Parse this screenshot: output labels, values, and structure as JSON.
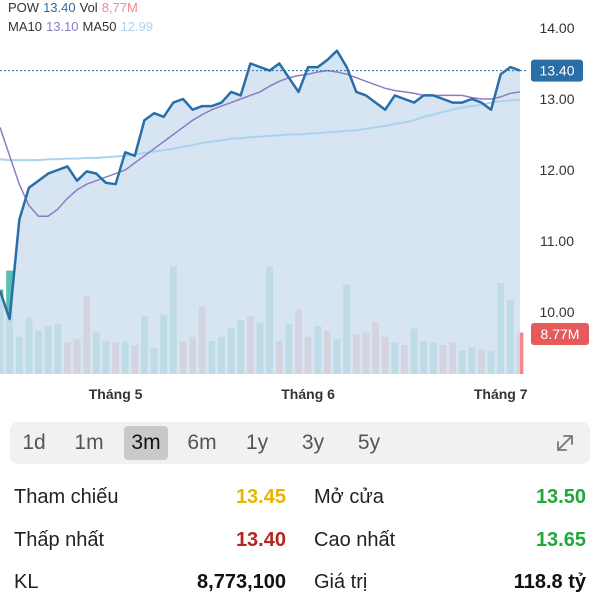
{
  "legend": {
    "ticker": "POW",
    "price": "13.40",
    "vol_label": "Vol",
    "vol_value": "8,77M",
    "ma10_label": "MA10",
    "ma10_value": "13.10",
    "ma50_label": "MA50",
    "ma50_value": "12.99"
  },
  "colors": {
    "price_line": "#2a6ea8",
    "price_fill": "#cfe0ef",
    "ma10": "#8e7cc3",
    "ma50": "#a8d4f2",
    "vol_up": "#5bbfb0",
    "vol_down": "#ef8a8f",
    "label_red": "#e55a5a",
    "ref_yellow": "#e8b500",
    "low_red": "#b3261e",
    "up_green": "#1fa83a"
  },
  "chart_data": {
    "type": "line",
    "y_ticks": [
      "14.00",
      "13.00",
      "12.00",
      "11.00",
      "10.00"
    ],
    "ylim": [
      9.2,
      14.35
    ],
    "x_labels": [
      "Tháng 5",
      "Tháng 6",
      "Tháng 7"
    ],
    "current_price_label": "13.40",
    "current_volume_label": "8.77M",
    "price": [
      10.3,
      9.9,
      11.3,
      11.75,
      11.85,
      11.95,
      12.0,
      12.05,
      11.85,
      11.98,
      11.95,
      11.82,
      11.8,
      12.25,
      12.2,
      12.7,
      12.8,
      12.75,
      12.95,
      13.0,
      12.85,
      12.9,
      12.9,
      12.95,
      13.1,
      13.05,
      13.5,
      13.45,
      13.4,
      13.5,
      13.3,
      13.1,
      13.45,
      13.45,
      13.55,
      13.68,
      13.45,
      13.1,
      13.05,
      12.95,
      12.85,
      13.05,
      13.0,
      12.95,
      13.05,
      13.05,
      13.0,
      12.95,
      12.95,
      13.0,
      12.95,
      12.85,
      13.35,
      13.45,
      13.4
    ],
    "ma10": [
      12.6,
      12.2,
      11.8,
      11.5,
      11.35,
      11.35,
      11.45,
      11.6,
      11.72,
      11.8,
      11.85,
      11.9,
      11.95,
      12.0,
      12.1,
      12.2,
      12.3,
      12.4,
      12.5,
      12.6,
      12.7,
      12.78,
      12.85,
      12.9,
      12.95,
      13.0,
      13.05,
      13.1,
      13.18,
      13.25,
      13.3,
      13.33,
      13.35,
      13.38,
      13.4,
      13.38,
      13.35,
      13.3,
      13.25,
      13.2,
      13.15,
      13.12,
      13.1,
      13.08,
      13.05,
      13.05,
      13.05,
      13.05,
      13.05,
      13.02,
      13.0,
      13.0,
      13.03,
      13.08,
      13.1
    ],
    "ma50": [
      12.15,
      12.14,
      12.14,
      12.14,
      12.14,
      12.15,
      12.15,
      12.16,
      12.16,
      12.17,
      12.17,
      12.18,
      12.19,
      12.2,
      12.22,
      12.24,
      12.26,
      12.28,
      12.3,
      12.33,
      12.35,
      12.38,
      12.4,
      12.42,
      12.44,
      12.45,
      12.46,
      12.47,
      12.48,
      12.49,
      12.5,
      12.5,
      12.51,
      12.52,
      12.53,
      12.54,
      12.55,
      12.56,
      12.58,
      12.6,
      12.62,
      12.65,
      12.67,
      12.7,
      12.75,
      12.78,
      12.82,
      12.85,
      12.88,
      12.9,
      12.92,
      12.95,
      12.97,
      12.98,
      12.99
    ],
    "volume": [
      10.2,
      12.5,
      4.5,
      6.8,
      5.2,
      5.8,
      6.1,
      3.8,
      4.2,
      9.5,
      5.0,
      4.0,
      3.8,
      3.9,
      3.5,
      7.0,
      3.2,
      7.2,
      13.0,
      4.0,
      4.5,
      8.2,
      4.0,
      4.5,
      5.5,
      6.5,
      7.0,
      6.2,
      13.0,
      4.0,
      6.0,
      7.8,
      4.5,
      5.8,
      5.2,
      4.2,
      10.8,
      4.8,
      5.0,
      6.2,
      4.5,
      3.8,
      3.5,
      5.5,
      4.0,
      3.8,
      3.5,
      3.8,
      2.8,
      3.2,
      3.0,
      2.8,
      11.0,
      9.0,
      5.0
    ],
    "volume_up": [
      true,
      true,
      true,
      true,
      true,
      true,
      true,
      false,
      false,
      false,
      true,
      true,
      false,
      true,
      false,
      true,
      true,
      true,
      true,
      false,
      false,
      false,
      true,
      true,
      true,
      true,
      false,
      true,
      true,
      false,
      true,
      false,
      false,
      true,
      false,
      true,
      true,
      false,
      false,
      false,
      false,
      true,
      false,
      true,
      true,
      true,
      false,
      false,
      true,
      true,
      false,
      true,
      true,
      true,
      false
    ],
    "volume_max": 14.5
  },
  "tabs": [
    {
      "label": "1d",
      "active": false
    },
    {
      "label": "1m",
      "active": false
    },
    {
      "label": "3m",
      "active": true
    },
    {
      "label": "6m",
      "active": false
    },
    {
      "label": "1y",
      "active": false
    },
    {
      "label": "3y",
      "active": false
    },
    {
      "label": "5y",
      "active": false
    }
  ],
  "stats": {
    "ref_label": "Tham chiếu",
    "ref_value": "13.45",
    "open_label": "Mở cửa",
    "open_value": "13.50",
    "low_label": "Thấp nhất",
    "low_value": "13.40",
    "high_label": "Cao nhất",
    "high_value": "13.65",
    "vol_label": "KL",
    "vol_value": "8,773,100",
    "value_label": "Giá trị",
    "value_value": "118.8 tỷ"
  },
  "icons": {
    "expand": "expand-icon"
  }
}
